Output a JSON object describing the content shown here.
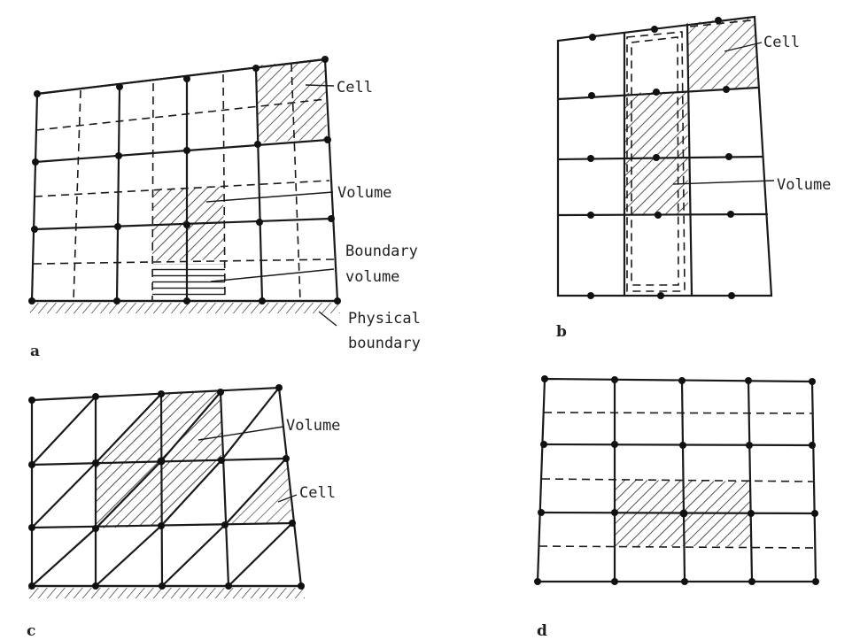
{
  "panels": {
    "a": {
      "letter": "a",
      "labels": {
        "cell": "Cell",
        "volume": "Volume",
        "boundary_volume_line1": "Boundary",
        "boundary_volume_line2": "volume",
        "physical_boundary_line1": "Physical",
        "physical_boundary_line2": "boundary"
      }
    },
    "b": {
      "letter": "b",
      "labels": {
        "cell": "Cell",
        "volume": "Volume"
      }
    },
    "c": {
      "letter": "c",
      "labels": {
        "volume": "Volume",
        "cell": "Cell"
      }
    },
    "d": {
      "letter": "d"
    }
  }
}
